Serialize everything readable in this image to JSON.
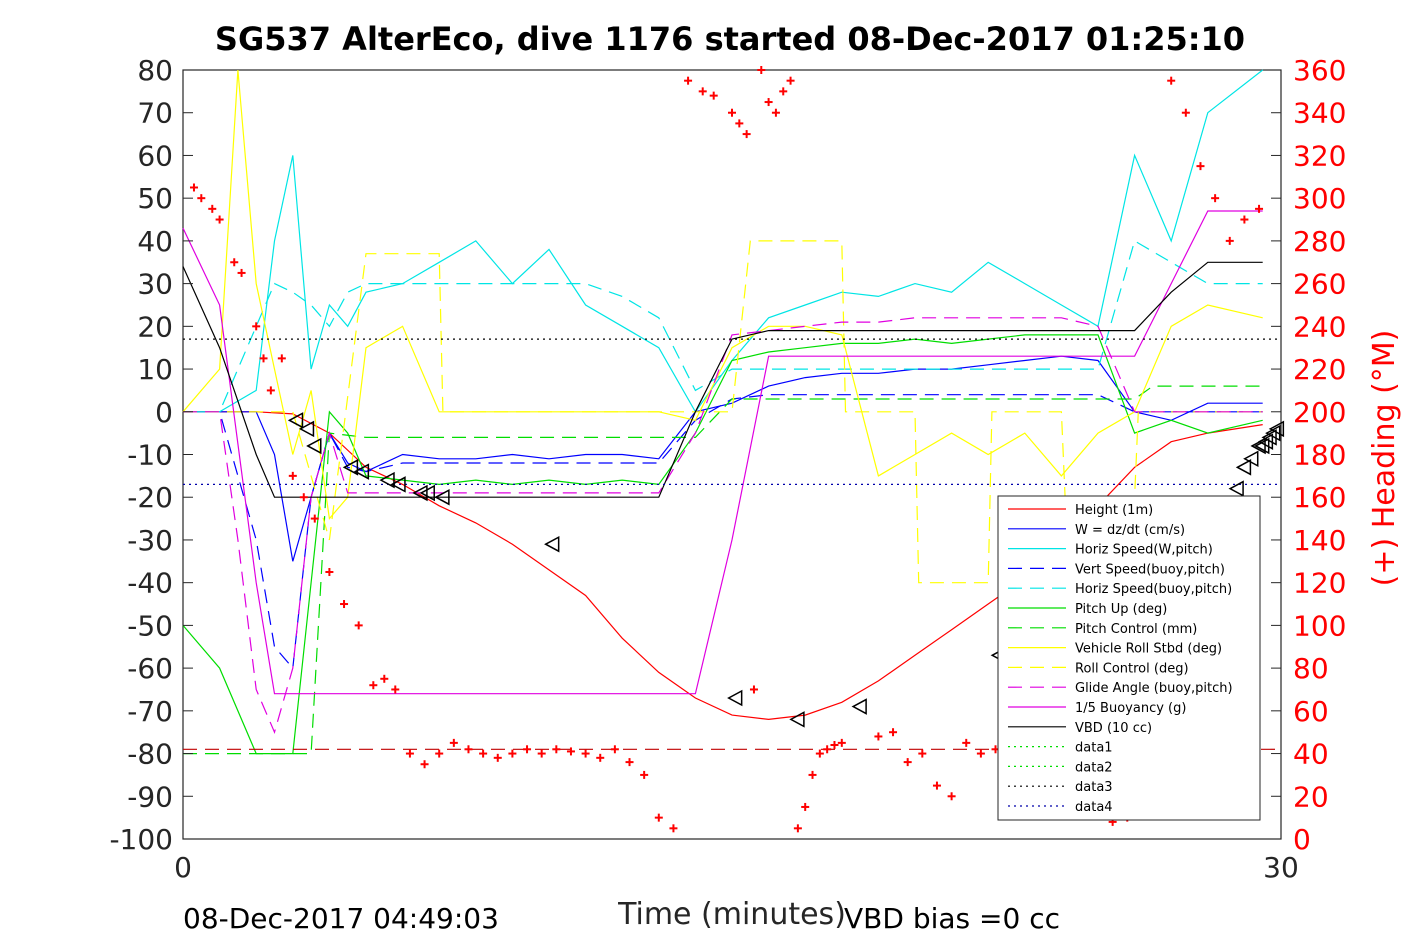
{
  "chart_data": {
    "type": "line",
    "title": "SG537 AlterEco, dive 1176 started 08-Dec-2017 01:25:10",
    "xlabel": "Time (minutes)",
    "ylabel_right": "(+) Heading (°M)",
    "xlim": [
      0,
      30
    ],
    "ylim_left": [
      -100,
      80
    ],
    "ylim_right": [
      0,
      360
    ],
    "x_ticks": [
      "0",
      "30"
    ],
    "y_ticks_left": [
      "80",
      "70",
      "60",
      "50",
      "40",
      "30",
      "20",
      "10",
      "0",
      "-10",
      "-20",
      "-30",
      "-40",
      "-50",
      "-60",
      "-70",
      "-80",
      "-90",
      "-100"
    ],
    "y_ticks_right": [
      "360",
      "340",
      "320",
      "300",
      "280",
      "260",
      "240",
      "220",
      "200",
      "180",
      "160",
      "140",
      "120",
      "100",
      "80",
      "60",
      "40",
      "20",
      "0"
    ],
    "footer_left": "08-Dec-2017 04:49:03",
    "footer_right": "VBD bias =0 cc",
    "grid": false,
    "legend_position": "bottom-right",
    "legend": [
      {
        "name": "Height (1m)",
        "color": "#ff0000",
        "style": "solid"
      },
      {
        "name": "W = dz/dt (cm/s)",
        "color": "#0000ff",
        "style": "solid"
      },
      {
        "name": "Horiz Speed(W,pitch)",
        "color": "#00e5e5",
        "style": "solid"
      },
      {
        "name": "Vert Speed(buoy,pitch)",
        "color": "#0000ff",
        "style": "dashed"
      },
      {
        "name": "Horiz Speed(buoy,pitch)",
        "color": "#00e5e5",
        "style": "dashed"
      },
      {
        "name": "Pitch Up (deg)",
        "color": "#00dd00",
        "style": "solid"
      },
      {
        "name": "Pitch Control (mm)",
        "color": "#00dd00",
        "style": "dashed"
      },
      {
        "name": "Vehicle Roll Stbd (deg)",
        "color": "#ffff00",
        "style": "solid"
      },
      {
        "name": "Roll Control (deg)",
        "color": "#ffff00",
        "style": "dashed"
      },
      {
        "name": "Glide Angle (buoy,pitch)",
        "color": "#e000e0",
        "style": "dashed"
      },
      {
        "name": "1/5 Buoyancy (g)",
        "color": "#e000e0",
        "style": "solid"
      },
      {
        "name": "VBD (10 cc)",
        "color": "#000000",
        "style": "solid"
      },
      {
        "name": "data1",
        "color": "#00dd00",
        "style": "dotted"
      },
      {
        "name": "data2",
        "color": "#00dd00",
        "style": "dotted"
      },
      {
        "name": "data3",
        "color": "#000000",
        "style": "dotted"
      },
      {
        "name": "data4",
        "color": "#0000aa",
        "style": "dotted"
      }
    ],
    "series": [
      {
        "name": "Height (1m)",
        "axis": "left",
        "x": [
          0,
          1,
          2,
          3,
          4,
          5,
          6,
          7,
          8,
          9,
          10,
          11,
          12,
          13,
          14,
          15,
          16,
          17,
          18,
          19,
          20,
          21,
          22,
          23,
          24,
          25,
          26,
          27,
          28,
          29.5
        ],
        "y": [
          0,
          0,
          0,
          -0.5,
          -5,
          -13,
          -17,
          -22,
          -26,
          -31,
          -37,
          -43,
          -53,
          -61,
          -67,
          -71,
          -72,
          -71,
          -68,
          -63,
          -57,
          -51,
          -45,
          -39,
          -31,
          -22,
          -13,
          -7,
          -5,
          -3
        ]
      },
      {
        "name": "W = dz/dt (cm/s)",
        "axis": "left",
        "x": [
          0,
          1,
          2,
          2.5,
          3,
          3.5,
          4,
          4.5,
          5,
          6,
          7,
          8,
          9,
          10,
          11,
          12,
          13,
          14,
          15,
          16,
          17,
          18,
          19,
          20,
          21,
          22,
          23,
          24,
          25,
          26,
          27,
          28,
          29.5
        ],
        "y": [
          0,
          0,
          0,
          -10,
          -35,
          -20,
          -5,
          -12,
          -14,
          -10,
          -11,
          -11,
          -10,
          -11,
          -10,
          -10,
          -11,
          0,
          2,
          6,
          8,
          9,
          9,
          10,
          10,
          11,
          12,
          13,
          12,
          0,
          -2,
          2,
          2
        ]
      },
      {
        "name": "Horiz Speed(W,pitch)",
        "axis": "left",
        "x": [
          0,
          1,
          2,
          2.5,
          3,
          3.5,
          4,
          4.5,
          5,
          6,
          7,
          8,
          9,
          10,
          11,
          12,
          13,
          14,
          15,
          16,
          17,
          18,
          19,
          20,
          21,
          22,
          23,
          24,
          25,
          26,
          27,
          28,
          29.5
        ],
        "y": [
          0,
          0,
          5,
          40,
          60,
          10,
          25,
          20,
          28,
          30,
          35,
          40,
          30,
          38,
          25,
          20,
          15,
          0,
          12,
          22,
          25,
          28,
          27,
          30,
          28,
          35,
          30,
          25,
          20,
          60,
          40,
          70,
          80
        ]
      },
      {
        "name": "Vert Speed(buoy,pitch)",
        "axis": "left",
        "x": [
          0,
          1,
          2,
          2.5,
          3,
          3.5,
          4,
          4.5,
          5,
          6,
          7,
          8,
          9,
          10,
          11,
          12,
          13,
          14,
          15,
          16,
          17,
          18,
          19,
          20,
          21,
          22,
          23,
          24,
          25,
          26,
          27,
          28,
          29.5
        ],
        "y": [
          0,
          0,
          -30,
          -55,
          -60,
          -20,
          -5,
          -13,
          -14,
          -12,
          -12,
          -12,
          -12,
          -12,
          -12,
          -12,
          -12,
          -2,
          3,
          4,
          4,
          4,
          4,
          4,
          4,
          4,
          4,
          4,
          4,
          0,
          0,
          0,
          0
        ]
      },
      {
        "name": "Horiz Speed(buoy,pitch)",
        "axis": "left",
        "x": [
          0,
          1,
          2,
          2.5,
          3,
          3.5,
          4,
          4.5,
          5,
          6,
          7,
          8,
          9,
          10,
          11,
          12,
          13,
          14,
          15,
          16,
          17,
          18,
          19,
          20,
          21,
          22,
          23,
          24,
          25,
          26,
          27,
          28,
          29.5
        ],
        "y": [
          0,
          0,
          20,
          30,
          28,
          25,
          20,
          28,
          30,
          30,
          30,
          30,
          30,
          30,
          30,
          27,
          22,
          5,
          10,
          10,
          10,
          10,
          10,
          10,
          10,
          10,
          10,
          10,
          10,
          40,
          35,
          30,
          30
        ]
      },
      {
        "name": "Pitch Up (deg)",
        "axis": "left",
        "x": [
          0,
          1,
          2,
          2.5,
          3,
          3.5,
          4,
          4.5,
          5,
          6,
          7,
          8,
          9,
          10,
          11,
          12,
          13,
          14,
          15,
          16,
          17,
          18,
          19,
          20,
          21,
          22,
          23,
          24,
          25,
          26,
          27,
          28,
          29.5
        ],
        "y": [
          -50,
          -60,
          -80,
          -80,
          -80,
          -40,
          0,
          -5,
          -15,
          -16,
          -17,
          -16,
          -17,
          -16,
          -17,
          -16,
          -17,
          -5,
          12,
          14,
          15,
          16,
          16,
          17,
          16,
          17,
          18,
          18,
          18,
          -5,
          -2,
          -5,
          -2
        ]
      },
      {
        "name": "Pitch Control (mm)",
        "axis": "left",
        "x": [
          0,
          2,
          2.5,
          3.5,
          4,
          5,
          14,
          15,
          16,
          26,
          26.5,
          29.5
        ],
        "y": [
          -80,
          -80,
          -80,
          -80,
          -5,
          -6,
          -6,
          3,
          3,
          3,
          6,
          6
        ]
      },
      {
        "name": "Vehicle Roll Stbd (deg)",
        "axis": "left",
        "x": [
          0,
          1,
          1.5,
          2,
          2.5,
          3,
          3.5,
          4,
          4.5,
          5,
          6,
          7,
          8,
          9,
          10,
          11,
          12,
          13,
          14,
          15,
          16,
          17,
          18,
          19,
          20,
          21,
          22,
          23,
          24,
          25,
          26,
          27,
          28,
          29.5
        ],
        "y": [
          0,
          10,
          80,
          30,
          10,
          -10,
          5,
          -25,
          -20,
          15,
          20,
          0,
          0,
          0,
          0,
          0,
          0,
          0,
          -2,
          15,
          20,
          20,
          18,
          -15,
          -10,
          -5,
          -10,
          -5,
          -15,
          -5,
          0,
          20,
          25,
          22
        ]
      },
      {
        "name": "Roll Control (deg)",
        "axis": "left",
        "x": [
          0,
          3,
          4,
          5,
          5.1,
          7,
          7.1,
          14,
          15,
          15.5,
          15.6,
          18,
          18.1,
          20,
          20.1,
          22,
          22.1,
          24,
          24.1,
          26,
          26.1,
          29.5
        ],
        "y": [
          0,
          0,
          -30,
          37,
          37,
          37,
          0,
          0,
          0,
          40,
          40,
          40,
          0,
          0,
          -40,
          -40,
          0,
          0,
          -20,
          -20,
          0,
          0
        ]
      },
      {
        "name": "Glide Angle (buoy,pitch)",
        "axis": "left",
        "x": [
          0,
          1,
          1.5,
          2,
          2.5,
          3,
          3.5,
          4,
          4.5,
          5,
          6,
          7,
          8,
          9,
          10,
          11,
          12,
          13,
          14,
          15,
          16,
          17,
          18,
          19,
          20,
          21,
          22,
          23,
          24,
          25,
          26,
          27,
          28,
          29.5
        ],
        "y": [
          0,
          0,
          -30,
          -65,
          -75,
          -60,
          -20,
          -5,
          -19,
          -19,
          -19,
          -19,
          -19,
          -19,
          -19,
          -19,
          -19,
          -19,
          -5,
          18,
          19,
          20,
          21,
          21,
          22,
          22,
          22,
          22,
          22,
          20,
          0,
          0,
          0,
          0
        ]
      },
      {
        "name": "1/5 Buoyancy (g)",
        "axis": "left",
        "x": [
          0,
          1,
          2,
          2.5,
          3,
          4,
          5,
          6,
          7,
          8,
          9,
          10,
          11,
          12,
          13,
          14,
          15,
          16,
          17,
          18,
          19,
          20,
          21,
          22,
          23,
          24,
          25,
          26,
          27,
          28,
          29.5
        ],
        "y": [
          43,
          25,
          -40,
          -66,
          -66,
          -66,
          -66,
          -66,
          -66,
          -66,
          -66,
          -66,
          -66,
          -66,
          -66,
          -66,
          -30,
          13,
          13,
          13,
          13,
          13,
          13,
          13,
          13,
          13,
          13,
          13,
          30,
          47,
          47
        ]
      },
      {
        "name": "VBD (10 cc)",
        "axis": "left",
        "x": [
          0,
          1,
          2,
          2.5,
          3,
          4,
          5,
          6,
          7,
          8,
          9,
          10,
          11,
          12,
          13,
          14,
          15,
          16,
          17,
          18,
          19,
          20,
          21,
          22,
          23,
          24,
          25,
          26,
          27,
          28,
          29.5
        ],
        "y": [
          34,
          15,
          -10,
          -20,
          -20,
          -20,
          -20,
          -20,
          -20,
          -20,
          -20,
          -20,
          -20,
          -20,
          -20,
          0,
          17,
          19,
          19,
          19,
          19,
          19,
          19,
          19,
          19,
          19,
          19,
          19,
          28,
          35,
          35
        ]
      },
      {
        "name": "data3",
        "axis": "left",
        "x": [
          0,
          30
        ],
        "y": [
          17,
          17
        ]
      },
      {
        "name": "data4",
        "axis": "left",
        "x": [
          0,
          30
        ],
        "y": [
          -17,
          -17
        ]
      },
      {
        "name": "data1",
        "axis": "left",
        "x": [
          0,
          30
        ],
        "y": [
          -79,
          -79
        ]
      },
      {
        "name": "Heading",
        "axis": "right",
        "kind": "markers",
        "x": [
          0.3,
          0.5,
          0.8,
          1.0,
          1.4,
          1.6,
          2.0,
          2.2,
          2.4,
          2.7,
          3.0,
          3.3,
          3.6,
          4.0,
          4.4,
          4.8,
          5.2,
          5.5,
          5.8,
          6.2,
          6.6,
          7.0,
          7.4,
          7.8,
          8.2,
          8.6,
          9.0,
          9.4,
          9.8,
          10.2,
          10.6,
          11.0,
          11.4,
          11.8,
          12.2,
          12.6,
          13.0,
          13.4,
          13.8,
          14.2,
          14.5,
          15.0,
          15.2,
          15.4,
          15.6,
          15.8,
          16.0,
          16.2,
          16.4,
          16.6,
          16.8,
          17.0,
          17.2,
          17.4,
          17.6,
          17.8,
          18.0,
          19.0,
          19.4,
          19.8,
          20.2,
          20.6,
          21.0,
          21.4,
          21.8,
          22.2,
          22.6,
          23.0,
          23.4,
          23.8,
          24.2,
          24.6,
          25.0,
          25.4,
          25.8,
          26.2,
          26.6,
          27.0,
          27.4,
          27.8,
          28.2,
          28.6,
          29.0,
          29.4
        ],
        "y": [
          305,
          300,
          295,
          290,
          270,
          265,
          240,
          225,
          210,
          225,
          170,
          160,
          150,
          125,
          110,
          100,
          72,
          75,
          70,
          40,
          35,
          40,
          45,
          42,
          40,
          38,
          40,
          42,
          40,
          42,
          41,
          40,
          38,
          42,
          36,
          30,
          10,
          5,
          355,
          350,
          348,
          340,
          335,
          330,
          70,
          360,
          345,
          340,
          350,
          355,
          5,
          15,
          30,
          40,
          42,
          44,
          45,
          48,
          50,
          36,
          40,
          25,
          20,
          45,
          40,
          42,
          50,
          45,
          40,
          35,
          30,
          20,
          15,
          8,
          10,
          20,
          40,
          355,
          340,
          315,
          300,
          280,
          290,
          295
        ]
      }
    ],
    "markers_triangles": {
      "x": [
        3.1,
        3.4,
        3.6,
        4.6,
        4.9,
        5.6,
        5.9,
        6.5,
        6.7,
        7.1,
        10.1,
        15.1,
        16.8,
        18.5,
        22.3,
        23.5,
        23.7,
        24.3,
        24.5,
        25.3,
        25.5,
        25.9,
        26.1,
        27.1,
        27.5,
        28.8,
        29.0,
        29.2,
        29.4,
        29.5,
        29.6,
        29.7,
        29.8,
        29.9
      ],
      "y": [
        -2,
        -4,
        -8,
        -13,
        -14,
        -16,
        -17,
        -19,
        -19,
        -20,
        -31,
        -67,
        -72,
        -69,
        -57,
        -52,
        -50,
        -47,
        -46,
        -43,
        -42,
        -40,
        -39,
        -32,
        -29,
        -18,
        -13,
        -11,
        -8,
        -8,
        -7,
        -6,
        -5,
        -4
      ]
    }
  }
}
